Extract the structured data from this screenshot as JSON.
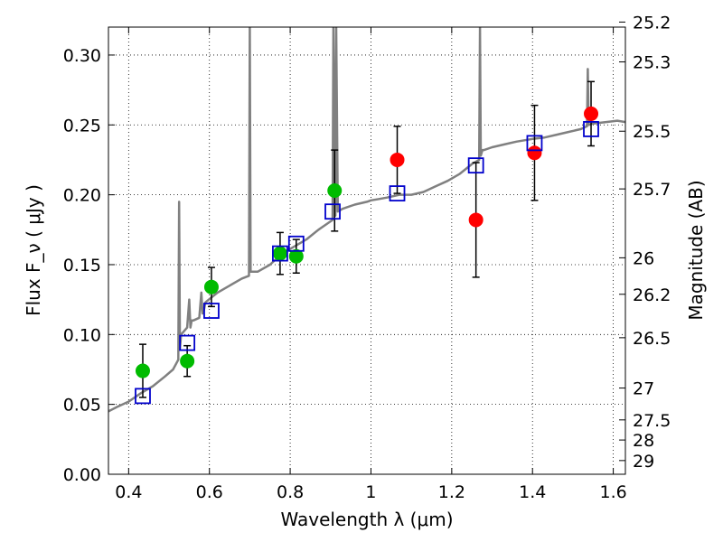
{
  "chart_data": {
    "type": "scatter",
    "xlabel": "Wavelength  λ (μm)",
    "ylabel": "Flux  F_ν  ( μJy )",
    "y2label": "Magnitude (AB)",
    "xlim": [
      0.35,
      1.63
    ],
    "ylim": [
      0.0,
      0.32
    ],
    "grid": true,
    "x_ticks": [
      0.4,
      0.6,
      0.8,
      1.0,
      1.2,
      1.4,
      1.6
    ],
    "x_tick_labels": [
      "0.4",
      "0.6",
      "0.8",
      "1",
      "1.2",
      "1.4",
      "1.6"
    ],
    "y_ticks": [
      0.0,
      0.05,
      0.1,
      0.15,
      0.2,
      0.25,
      0.3
    ],
    "y_tick_labels": [
      "0.00",
      "0.05",
      "0.10",
      "0.15",
      "0.20",
      "0.25",
      "0.30"
    ],
    "mag_ticks": [
      {
        "label": "25.2",
        "flux": 0.3236
      },
      {
        "label": "25.3",
        "flux": 0.2951
      },
      {
        "label": "25.5",
        "flux": 0.2455
      },
      {
        "label": "25.7",
        "flux": 0.2042
      },
      {
        "label": "26",
        "flux": 0.1549
      },
      {
        "label": "26.2",
        "flux": 0.1288
      },
      {
        "label": "26.5",
        "flux": 0.0977
      },
      {
        "label": "27",
        "flux": 0.0617
      },
      {
        "label": "27.5",
        "flux": 0.0389
      },
      {
        "label": "28",
        "flux": 0.0245
      },
      {
        "label": "29",
        "flux": 0.0098
      }
    ],
    "colors": {
      "template": "#808080",
      "model": "#0000cc",
      "optical": "#00bb00",
      "infrared": "#ff0000",
      "errorbar": "#000000"
    },
    "series": [
      {
        "name": "template-spectrum",
        "kind": "line",
        "x": [
          0.35,
          0.37,
          0.4,
          0.43,
          0.46,
          0.49,
          0.51,
          0.523,
          0.525,
          0.527,
          0.53,
          0.545,
          0.55,
          0.553,
          0.556,
          0.56,
          0.575,
          0.58,
          0.583,
          0.586,
          0.59,
          0.62,
          0.65,
          0.68,
          0.698,
          0.7,
          0.702,
          0.72,
          0.75,
          0.78,
          0.81,
          0.84,
          0.87,
          0.895,
          0.905,
          0.907,
          0.912,
          0.914,
          0.918,
          0.93,
          0.96,
          0.99,
          1.0,
          1.02,
          1.04,
          1.07,
          1.1,
          1.13,
          1.16,
          1.19,
          1.22,
          1.25,
          1.268,
          1.27,
          1.272,
          1.276,
          1.28,
          1.3,
          1.33,
          1.36,
          1.4,
          1.43,
          1.46,
          1.49,
          1.52,
          1.535,
          1.537,
          1.539,
          1.55,
          1.58,
          1.61,
          1.63
        ],
        "y": [
          0.045,
          0.048,
          0.052,
          0.058,
          0.063,
          0.07,
          0.075,
          0.082,
          0.195,
          0.09,
          0.1,
          0.105,
          0.125,
          0.105,
          0.11,
          0.11,
          0.112,
          0.13,
          0.115,
          0.117,
          0.123,
          0.13,
          0.135,
          0.14,
          0.142,
          0.32,
          0.145,
          0.145,
          0.15,
          0.158,
          0.163,
          0.168,
          0.175,
          0.18,
          0.182,
          0.32,
          0.185,
          0.32,
          0.188,
          0.19,
          0.193,
          0.195,
          0.196,
          0.197,
          0.198,
          0.2,
          0.2,
          0.202,
          0.206,
          0.21,
          0.215,
          0.222,
          0.225,
          0.32,
          0.228,
          0.232,
          0.232,
          0.234,
          0.236,
          0.238,
          0.24,
          0.241,
          0.243,
          0.245,
          0.247,
          0.249,
          0.29,
          0.25,
          0.251,
          0.252,
          0.253,
          0.252
        ]
      },
      {
        "name": "model-photometry",
        "kind": "open-square",
        "x": [
          0.435,
          0.545,
          0.605,
          0.775,
          0.815,
          0.905,
          1.065,
          1.26,
          1.405,
          1.545
        ],
        "y": [
          0.056,
          0.094,
          0.117,
          0.158,
          0.165,
          0.188,
          0.201,
          0.221,
          0.237,
          0.247
        ]
      },
      {
        "name": "optical-photometry",
        "kind": "filled-circle",
        "x": [
          0.435,
          0.545,
          0.605,
          0.775,
          0.815,
          0.91
        ],
        "y": [
          0.074,
          0.081,
          0.134,
          0.158,
          0.156,
          0.203
        ],
        "yerr": [
          0.019,
          0.011,
          0.014,
          0.015,
          0.012,
          0.029
        ]
      },
      {
        "name": "infrared-photometry",
        "kind": "filled-circle",
        "x": [
          1.065,
          1.26,
          1.405,
          1.545
        ],
        "y": [
          0.225,
          0.182,
          0.23,
          0.258
        ],
        "yerr": [
          0.024,
          0.041,
          0.034,
          0.023
        ]
      }
    ]
  }
}
